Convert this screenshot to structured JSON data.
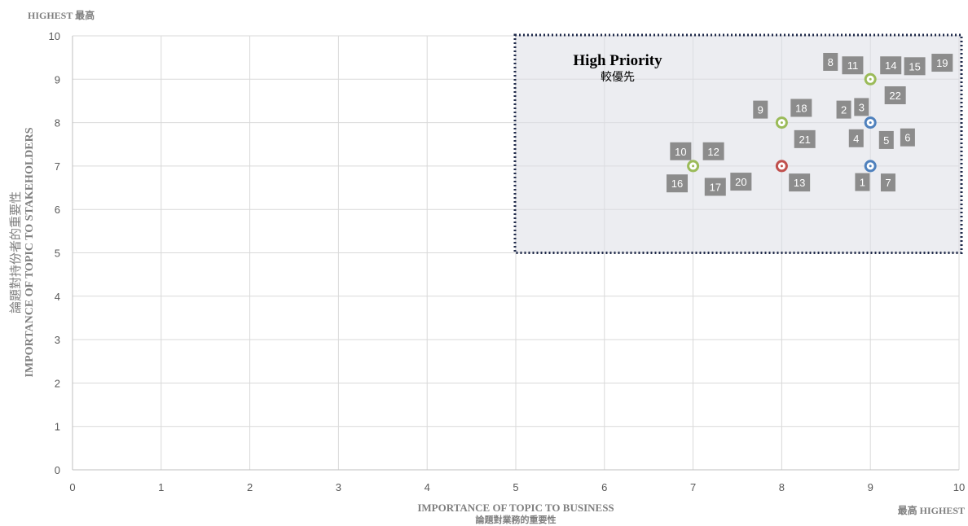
{
  "corner_top": "HIGHEST 最高",
  "corner_bottom": "最高 HIGHEST",
  "chart_data": {
    "type": "scatter",
    "title": "",
    "xlabel": "IMPORTANCE OF TOPIC TO BUSINESS",
    "xlabel_zh": "論題對業務的重要性",
    "ylabel": "IMPORTANCE OF TOPIC TO STAKEHOLDERS",
    "ylabel_zh": "論題對持份者的重要性",
    "xlim": [
      0,
      10
    ],
    "ylim": [
      0,
      10
    ],
    "x_ticks": [
      0,
      1,
      2,
      3,
      4,
      5,
      6,
      7,
      8,
      9,
      10
    ],
    "y_ticks": [
      0,
      1,
      2,
      3,
      4,
      5,
      6,
      7,
      8,
      9,
      10
    ],
    "grid": true,
    "highlight_region": {
      "label": "High Priority",
      "label_zh": "較優先",
      "x": [
        5,
        10
      ],
      "y": [
        5,
        10
      ]
    },
    "points": [
      {
        "x": 7,
        "y": 7,
        "color": "#9bbb59",
        "topics": [
          "10",
          "12",
          "16",
          "17",
          "20"
        ]
      },
      {
        "x": 8,
        "y": 8,
        "color": "#9bbb59",
        "topics": [
          "9",
          "18",
          "21"
        ]
      },
      {
        "x": 8,
        "y": 7,
        "color": "#c0504d",
        "topics": [
          "13"
        ]
      },
      {
        "x": 9,
        "y": 9,
        "color": "#9bbb59",
        "topics": [
          "8",
          "11",
          "14",
          "15",
          "19",
          "22"
        ]
      },
      {
        "x": 9,
        "y": 8,
        "color": "#4f81bd",
        "topics": [
          "2",
          "3",
          "4",
          "5",
          "6"
        ]
      },
      {
        "x": 9,
        "y": 7,
        "color": "#4f81bd",
        "topics": [
          "1",
          "7"
        ]
      }
    ],
    "labels": [
      {
        "text": "8",
        "x": 8.55,
        "y": 9.4
      },
      {
        "text": "11",
        "x": 8.8,
        "y": 9.32
      },
      {
        "text": "14",
        "x": 9.23,
        "y": 9.32
      },
      {
        "text": "15",
        "x": 9.5,
        "y": 9.3
      },
      {
        "text": "19",
        "x": 9.81,
        "y": 9.38
      },
      {
        "text": "22",
        "x": 9.28,
        "y": 8.63
      },
      {
        "text": "9",
        "x": 7.76,
        "y": 8.3
      },
      {
        "text": "18",
        "x": 8.22,
        "y": 8.34
      },
      {
        "text": "21",
        "x": 8.26,
        "y": 7.62
      },
      {
        "text": "2",
        "x": 8.7,
        "y": 8.3
      },
      {
        "text": "3",
        "x": 8.9,
        "y": 8.36
      },
      {
        "text": "4",
        "x": 8.84,
        "y": 7.64
      },
      {
        "text": "5",
        "x": 9.18,
        "y": 7.6
      },
      {
        "text": "6",
        "x": 9.42,
        "y": 7.66
      },
      {
        "text": "10",
        "x": 6.86,
        "y": 7.34
      },
      {
        "text": "12",
        "x": 7.23,
        "y": 7.34
      },
      {
        "text": "16",
        "x": 6.82,
        "y": 6.6
      },
      {
        "text": "17",
        "x": 7.25,
        "y": 6.52
      },
      {
        "text": "20",
        "x": 7.54,
        "y": 6.64
      },
      {
        "text": "13",
        "x": 8.2,
        "y": 6.62
      },
      {
        "text": "1",
        "x": 8.91,
        "y": 6.63
      },
      {
        "text": "7",
        "x": 9.2,
        "y": 6.62
      }
    ]
  }
}
